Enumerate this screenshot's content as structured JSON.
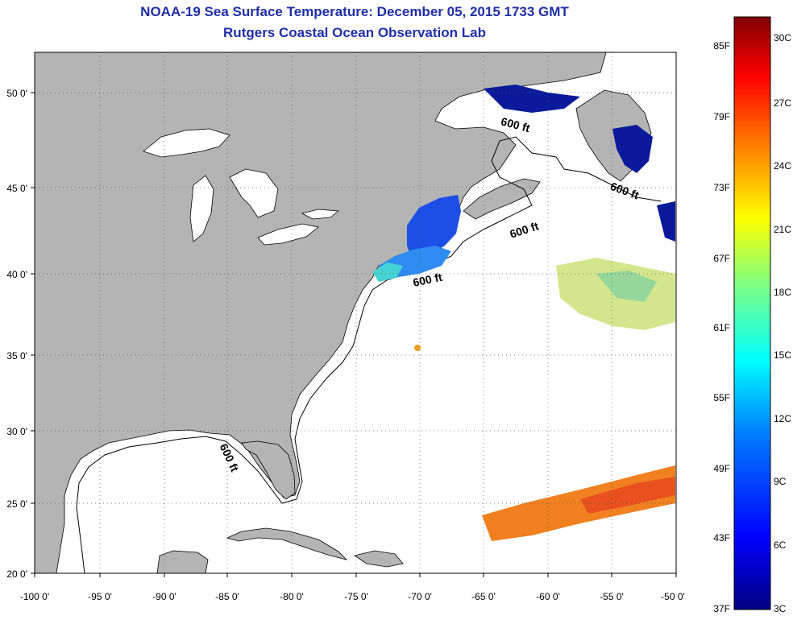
{
  "title": "NOAA-19 Sea Surface Temperature:  December 05, 2015 1733 GMT",
  "subtitle": "Rutgers Coastal Ocean Observation Lab",
  "map": {
    "lon_ticks": [
      "-100 0'",
      "-95 0'",
      "-90 0'",
      "-85 0'",
      "-80 0'",
      "-75 0'",
      "-70 0'",
      "-65 0'",
      "-60 0'",
      "-55 0'",
      "-50 0'"
    ],
    "lat_ticks": [
      "50 0'",
      "45 0'",
      "40 0'",
      "35 0'",
      "30 0'",
      "25 0'",
      "20 0'"
    ],
    "contour_label": "600 ft",
    "land_color": "#b4b4b4",
    "ocean_color": "#ffffff"
  },
  "colorbar": {
    "fahrenheit_labels": [
      "85F",
      "79F",
      "73F",
      "67F",
      "61F",
      "55F",
      "49F",
      "43F",
      "37F"
    ],
    "celsius_labels": [
      "30C",
      "27C",
      "24C",
      "21C",
      "18C",
      "15C",
      "12C",
      "9C",
      "6C",
      "3C"
    ],
    "colors": [
      "#800000",
      "#ff0000",
      "#ff8000",
      "#ffff00",
      "#80ff80",
      "#00ffff",
      "#0080ff",
      "#0000ff",
      "#000080"
    ]
  }
}
